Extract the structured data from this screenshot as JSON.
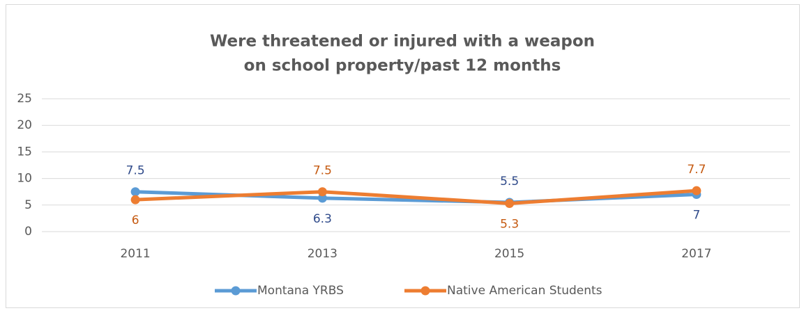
{
  "chart_data": {
    "type": "line",
    "title": [
      "Were threatened or injured with a weapon",
      "on school property/past 12 months"
    ],
    "categories": [
      "2011",
      "2013",
      "2015",
      "2017"
    ],
    "series": [
      {
        "name": "Montana YRBS",
        "color": "#5b9bd5",
        "label_color": "#2f4a8a",
        "values": [
          7.5,
          6.3,
          5.5,
          7
        ]
      },
      {
        "name": "Native American Students",
        "color": "#ed7d31",
        "label_color": "#c55a11",
        "values": [
          6,
          7.5,
          5.3,
          7.7
        ]
      }
    ],
    "ylim": [
      0,
      25
    ],
    "yticks": [
      0,
      5,
      10,
      15,
      20,
      25
    ],
    "grid": true,
    "legend": "bottom"
  }
}
